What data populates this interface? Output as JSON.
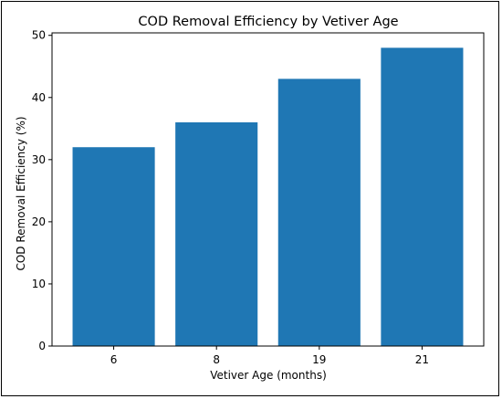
{
  "chart_data": {
    "type": "bar",
    "title": "COD Removal Efficiency by Vetiver Age",
    "xlabel": "Vetiver Age (months)",
    "ylabel": "COD Removal Efficiency (%)",
    "categories": [
      "6",
      "8",
      "19",
      "21"
    ],
    "values": [
      32,
      36,
      43,
      48
    ],
    "ylim": [
      0,
      50.4
    ],
    "yticks": [
      0,
      10,
      20,
      30,
      40,
      50
    ],
    "bar_color": "#1f77b4",
    "grid": false,
    "legend": "none"
  }
}
